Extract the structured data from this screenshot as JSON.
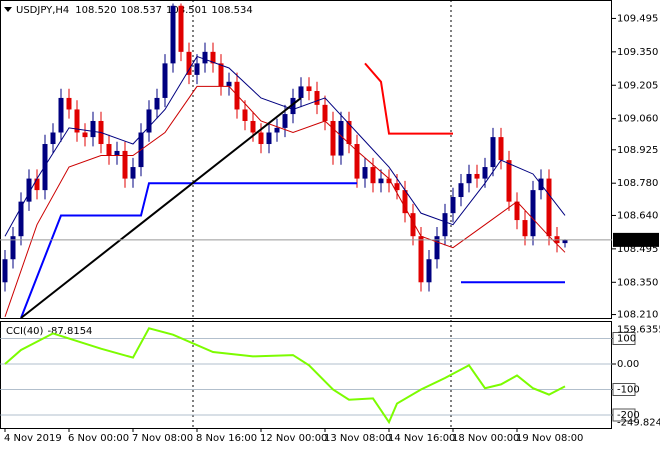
{
  "chart_data": [
    {
      "type": "candlestick",
      "header": {
        "symbol": "USDJPY,H4",
        "ohlc": [
          {
            "value": 108.52,
            "label": "108.520"
          },
          108.537,
          108.501,
          108.534
        ]
      },
      "xlim": [
        -0.625,
        75.875
      ],
      "ylim": [
        108.195,
        109.575
      ],
      "yticks": [
        109.495,
        {
          "value": 109.35,
          "label": "109.350"
        },
        109.205,
        {
          "value": 109.06,
          "label": "109.060"
        },
        108.925,
        {
          "value": 108.78,
          "label": "108.780"
        },
        {
          "value": 108.64,
          "label": "108.640"
        },
        108.495,
        {
          "value": 108.35,
          "label": "108.350"
        },
        {
          "value": 108.21,
          "label": "108.210"
        }
      ],
      "up_color": "#000080",
      "down_color": "#e00000",
      "open": [
        108.35,
        108.45,
        108.55,
        108.7,
        108.8,
        108.75,
        108.95,
        109.0,
        109.15,
        109.1,
        109.0,
        108.98,
        109.05,
        108.95,
        108.9,
        108.92,
        108.8,
        108.85,
        109.0,
        109.1,
        109.15,
        109.3,
        109.55,
        109.35,
        109.25,
        109.3,
        109.35,
        109.3,
        109.2,
        109.22,
        109.1,
        109.05,
        109.0,
        108.95,
        109.0,
        109.02,
        109.08,
        109.15,
        109.2,
        109.18,
        109.12,
        109.05,
        108.9,
        109.05,
        108.95,
        108.8,
        108.85,
        108.78,
        108.8,
        108.78,
        108.75,
        108.65,
        108.55,
        108.35,
        108.45,
        108.55,
        108.65,
        108.72,
        108.78,
        108.82,
        108.8,
        108.85,
        108.98,
        108.88,
        108.7,
        108.62,
        108.55,
        108.75,
        108.8,
        108.55,
        108.52
      ],
      "high": [
        108.49,
        108.59,
        108.74,
        108.84,
        108.84,
        108.99,
        109.04,
        109.19,
        109.19,
        109.14,
        109.04,
        109.09,
        109.09,
        108.99,
        108.96,
        108.96,
        108.89,
        109.04,
        109.14,
        109.19,
        109.34,
        109.56,
        109.56,
        109.39,
        109.34,
        109.39,
        109.39,
        109.34,
        109.26,
        109.26,
        109.14,
        109.09,
        109.04,
        109.04,
        109.06,
        109.12,
        109.19,
        109.24,
        109.24,
        109.22,
        109.16,
        109.09,
        109.09,
        109.09,
        108.99,
        108.89,
        108.89,
        108.84,
        108.84,
        108.82,
        108.79,
        108.69,
        108.59,
        108.49,
        108.59,
        108.69,
        108.76,
        108.82,
        108.86,
        108.86,
        108.89,
        109.02,
        109.02,
        108.92,
        108.74,
        108.66,
        108.79,
        108.84,
        108.84,
        108.59,
        108.537
      ],
      "low": [
        108.31,
        108.41,
        108.51,
        108.66,
        108.71,
        108.71,
        108.91,
        108.96,
        109.06,
        108.96,
        108.94,
        108.94,
        108.91,
        108.86,
        108.86,
        108.76,
        108.76,
        108.81,
        108.96,
        109.06,
        109.11,
        109.26,
        109.31,
        109.21,
        109.21,
        109.26,
        109.26,
        109.16,
        109.16,
        109.06,
        109.01,
        108.96,
        108.91,
        108.91,
        108.96,
        108.98,
        109.04,
        109.11,
        109.14,
        109.08,
        109.01,
        108.86,
        108.86,
        108.91,
        108.76,
        108.76,
        108.74,
        108.74,
        108.74,
        108.71,
        108.61,
        108.51,
        108.31,
        108.31,
        108.41,
        108.51,
        108.61,
        108.68,
        108.74,
        108.76,
        108.76,
        108.81,
        108.84,
        108.66,
        108.58,
        108.51,
        108.51,
        108.71,
        108.51,
        108.48,
        108.501
      ],
      "close": [
        108.45,
        108.55,
        108.7,
        108.8,
        108.75,
        108.95,
        109.0,
        109.15,
        109.1,
        109.0,
        108.98,
        109.05,
        108.95,
        108.9,
        108.92,
        108.8,
        108.85,
        109.0,
        109.1,
        109.15,
        109.3,
        109.55,
        109.35,
        109.25,
        109.3,
        109.35,
        109.3,
        109.2,
        109.22,
        109.1,
        109.05,
        109.0,
        108.95,
        109.0,
        109.02,
        109.08,
        109.15,
        109.2,
        109.18,
        109.12,
        109.05,
        108.9,
        109.05,
        108.95,
        108.8,
        108.85,
        108.78,
        108.8,
        108.78,
        108.75,
        108.65,
        108.55,
        108.35,
        108.45,
        108.55,
        108.65,
        108.72,
        108.78,
        108.82,
        108.8,
        108.85,
        108.98,
        108.88,
        108.7,
        108.62,
        108.55,
        108.75,
        108.8,
        108.55,
        108.52,
        108.534
      ],
      "lines": [
        {
          "color": "#000080",
          "width": 1,
          "x": [
            0,
            4,
            8,
            12,
            16,
            20,
            24,
            28,
            32,
            36,
            40,
            44,
            48,
            52,
            56,
            60,
            62,
            66,
            70
          ],
          "values": [
            108.55,
            108.8,
            109.02,
            109.0,
            108.95,
            109.1,
            109.33,
            109.28,
            109.15,
            109.1,
            109.15,
            109.0,
            108.85,
            108.65,
            108.6,
            108.78,
            108.88,
            108.82,
            108.64
          ]
        },
        {
          "color": "#cc0000",
          "width": 1,
          "x": [
            0,
            4,
            8,
            12,
            16,
            20,
            24,
            28,
            32,
            36,
            40,
            44,
            48,
            52,
            56,
            60,
            64,
            68,
            70
          ],
          "values": [
            108.2,
            108.6,
            108.85,
            108.9,
            108.9,
            109.0,
            109.2,
            109.2,
            109.05,
            109.0,
            109.05,
            108.92,
            108.8,
            108.55,
            108.5,
            108.6,
            108.7,
            108.55,
            108.48
          ]
        },
        {
          "color": "#0000ff",
          "width": 2,
          "x": [
            2,
            7,
            17,
            18,
            44
          ],
          "values": [
            108.195,
            108.64,
            108.64,
            108.78,
            108.78
          ]
        },
        {
          "color": "#ff0000",
          "width": 2,
          "x": [
            45,
            47,
            48,
            56
          ],
          "values": [
            109.3,
            109.22,
            108.995,
            108.995
          ]
        },
        {
          "color": "#0000ff",
          "width": 2,
          "x": [
            57,
            70
          ],
          "values": [
            108.35,
            108.35
          ]
        },
        {
          "color": "#000000",
          "width": 2,
          "x": [
            2,
            37
          ],
          "values": [
            108.195,
            109.15
          ]
        }
      ]
    },
    {
      "type": "line",
      "title": "CCI(40)",
      "xlim": [
        -0.625,
        75.875
      ],
      "ylim": [
        -251,
        164.7
      ],
      "yticks": [
        100,
        {
          "value": 0,
          "label": "0.00"
        },
        -100,
        -200
      ],
      "scale_labels": [
        159.6355,
        -249.8241
      ],
      "color": "#7cfc00",
      "x": [
        0,
        2,
        6,
        12,
        16,
        18,
        21,
        26,
        31,
        36,
        38,
        41,
        43,
        46,
        48,
        49,
        52,
        55,
        58,
        60,
        62,
        64,
        66,
        68,
        70
      ],
      "values": [
        0,
        55,
        120,
        60,
        25,
        140,
        115,
        47,
        30,
        35,
        -5,
        -100,
        -140,
        -135,
        -228,
        -155,
        -100,
        -55,
        -5,
        -95,
        -80,
        -45,
        -95,
        -120,
        -87.8154
      ],
      "xticks": [
        {
          "value": 0,
          "label": "4 Nov 2019"
        },
        {
          "value": 8,
          "label": "6 Nov 00:00"
        },
        {
          "value": 16,
          "label": "7 Nov 08:00"
        },
        {
          "value": 24,
          "label": "8 Nov 16:00"
        },
        {
          "value": 32,
          "label": "12 Nov 00:00"
        },
        {
          "value": 40,
          "label": "13 Nov 08:00"
        },
        {
          "value": 48,
          "label": "14 Nov 16:00"
        },
        {
          "value": 56,
          "label": "18 Nov 00:00"
        },
        {
          "value": 64,
          "label": "19 Nov 08:00"
        }
      ]
    }
  ]
}
